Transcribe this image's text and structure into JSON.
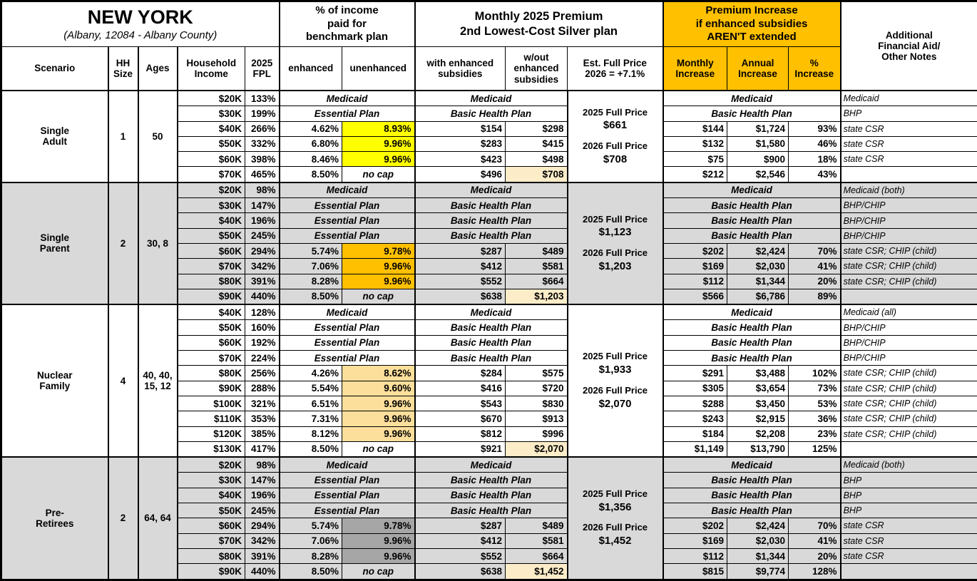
{
  "header": {
    "title": "NEW YORK",
    "subtitle": "(Albany, 12084 - Albany County)",
    "pct_income_group": "% of income\npaid for\nbenchmark plan",
    "premium_group": "Monthly 2025 Premium\n2nd Lowest-Cost Silver plan",
    "increase_group": "Premium Increase\nif enhanced subsidies\nAREN'T extended",
    "notes": "Additional\nFinancial Aid/\nOther Notes",
    "cols": {
      "scenario": "Scenario",
      "hh_size": "HH\nSize",
      "ages": "Ages",
      "income": "Household\nIncome",
      "fpl": "2025\nFPL",
      "enhanced": "enhanced",
      "unenhanced": "unenhanced",
      "with_subsidies": "with enhanced\nsubsidies",
      "without_subsidies": "w/out\nenhanced\nsubsidies",
      "full_price": "Est. Full Price\n2026 = +7.1%",
      "monthly_increase": "Monthly\nIncrease",
      "annual_increase": "Annual\nIncrease",
      "pct_increase": "%\nIncrease"
    }
  },
  "colors": {
    "header_accent": "#FFC000",
    "scenario_band_gray": "#D9D9D9",
    "highlight_yellow": "#FFFF00",
    "highlight_orange": "#FFC000",
    "highlight_tan": "#FBDF9B",
    "highlight_gray": "#A6A6A6",
    "full_price_highlight": "#FCECC8"
  },
  "scenarios": [
    {
      "name": "Single\nAdult",
      "hh_size": "1",
      "ages": "50",
      "band": "white",
      "highlight_color": "#FFFF00",
      "full_price": {
        "label_2025": "2025 Full Price",
        "price_2025": "$661",
        "label_2026": "2026 Full Price",
        "price_2026": "$708"
      },
      "rows": [
        {
          "income": "$20K",
          "fpl": "133%",
          "plan": true,
          "pct_plan": "Medicaid",
          "premium_plan": "Medicaid",
          "increase_plan": "Medicaid",
          "note": "Medicaid"
        },
        {
          "income": "$30K",
          "fpl": "199%",
          "plan": true,
          "pct_plan": "Essential Plan",
          "premium_plan": "Basic Health Plan",
          "increase_plan": "Basic Health Plan",
          "note": "BHP"
        },
        {
          "income": "$40K",
          "fpl": "266%",
          "enhanced": "4.62%",
          "unenhanced": "8.93%",
          "with_sub": "$154",
          "without_sub": "$298",
          "monthly": "$144",
          "annual": "$1,724",
          "pct_inc": "93%",
          "note": "state CSR"
        },
        {
          "income": "$50K",
          "fpl": "332%",
          "enhanced": "6.80%",
          "unenhanced": "9.96%",
          "with_sub": "$283",
          "without_sub": "$415",
          "monthly": "$132",
          "annual": "$1,580",
          "pct_inc": "46%",
          "note": "state CSR"
        },
        {
          "income": "$60K",
          "fpl": "398%",
          "enhanced": "8.46%",
          "unenhanced": "9.96%",
          "with_sub": "$423",
          "without_sub": "$498",
          "monthly": "$75",
          "annual": "$900",
          "pct_inc": "18%",
          "note": "state CSR"
        },
        {
          "income": "$70K",
          "fpl": "465%",
          "enhanced": "8.50%",
          "unenhanced": "no cap",
          "no_cap": true,
          "with_sub": "$496",
          "without_sub": "$708",
          "without_highlight": true,
          "monthly": "$212",
          "annual": "$2,546",
          "pct_inc": "43%",
          "note": ""
        }
      ]
    },
    {
      "name": "Single\nParent",
      "hh_size": "2",
      "ages": "30, 8",
      "band": "gray",
      "highlight_color": "#FFC000",
      "full_price": {
        "label_2025": "2025 Full Price",
        "price_2025": "$1,123",
        "label_2026": "2026 Full Price",
        "price_2026": "$1,203"
      },
      "rows": [
        {
          "income": "$20K",
          "fpl": "98%",
          "plan": true,
          "pct_plan": "Medicaid",
          "premium_plan": "Medicaid",
          "increase_plan": "Medicaid",
          "note": "Medicaid (both)"
        },
        {
          "income": "$30K",
          "fpl": "147%",
          "plan": true,
          "pct_plan": "Essential Plan",
          "premium_plan": "Basic Health Plan",
          "increase_plan": "Basic Health Plan",
          "note": "BHP/CHIP"
        },
        {
          "income": "$40K",
          "fpl": "196%",
          "plan": true,
          "pct_plan": "Essential Plan",
          "premium_plan": "Basic Health Plan",
          "increase_plan": "Basic Health Plan",
          "note": "BHP/CHIP"
        },
        {
          "income": "$50K",
          "fpl": "245%",
          "plan": true,
          "pct_plan": "Essential Plan",
          "premium_plan": "Basic Health Plan",
          "increase_plan": "Basic Health Plan",
          "note": "BHP/CHIP"
        },
        {
          "income": "$60K",
          "fpl": "294%",
          "enhanced": "5.74%",
          "unenhanced": "9.78%",
          "with_sub": "$287",
          "without_sub": "$489",
          "monthly": "$202",
          "annual": "$2,424",
          "pct_inc": "70%",
          "note": "state CSR; CHIP (child)"
        },
        {
          "income": "$70K",
          "fpl": "342%",
          "enhanced": "7.06%",
          "unenhanced": "9.96%",
          "with_sub": "$412",
          "without_sub": "$581",
          "monthly": "$169",
          "annual": "$2,030",
          "pct_inc": "41%",
          "note": "state CSR; CHIP (child)"
        },
        {
          "income": "$80K",
          "fpl": "391%",
          "enhanced": "8.28%",
          "unenhanced": "9.96%",
          "with_sub": "$552",
          "without_sub": "$664",
          "monthly": "$112",
          "annual": "$1,344",
          "pct_inc": "20%",
          "note": "state CSR; CHIP (child)"
        },
        {
          "income": "$90K",
          "fpl": "440%",
          "enhanced": "8.50%",
          "unenhanced": "no cap",
          "no_cap": true,
          "with_sub": "$638",
          "without_sub": "$1,203",
          "without_highlight": true,
          "monthly": "$566",
          "annual": "$6,786",
          "pct_inc": "89%",
          "note": ""
        }
      ]
    },
    {
      "name": "Nuclear\nFamily",
      "hh_size": "4",
      "ages": "40, 40,\n15, 12",
      "band": "white",
      "highlight_color": "#FBDF9B",
      "full_price": {
        "label_2025": "2025 Full Price",
        "price_2025": "$1,933",
        "label_2026": "2026 Full Price",
        "price_2026": "$2,070"
      },
      "rows": [
        {
          "income": "$40K",
          "fpl": "128%",
          "plan": true,
          "pct_plan": "Medicaid",
          "premium_plan": "Medicaid",
          "increase_plan": "Medicaid",
          "note": "Medicaid (all)"
        },
        {
          "income": "$50K",
          "fpl": "160%",
          "plan": true,
          "pct_plan": "Essential Plan",
          "premium_plan": "Basic Health Plan",
          "increase_plan": "Basic Health Plan",
          "note": "BHP/CHIP"
        },
        {
          "income": "$60K",
          "fpl": "192%",
          "plan": true,
          "pct_plan": "Essential Plan",
          "premium_plan": "Basic Health Plan",
          "increase_plan": "Basic Health Plan",
          "note": "BHP/CHIP"
        },
        {
          "income": "$70K",
          "fpl": "224%",
          "plan": true,
          "pct_plan": "Essential Plan",
          "premium_plan": "Basic Health Plan",
          "increase_plan": "Basic Health Plan",
          "note": "BHP/CHIP"
        },
        {
          "income": "$80K",
          "fpl": "256%",
          "enhanced": "4.26%",
          "unenhanced": "8.62%",
          "with_sub": "$284",
          "without_sub": "$575",
          "monthly": "$291",
          "annual": "$3,488",
          "pct_inc": "102%",
          "note": "state CSR; CHIP (child)"
        },
        {
          "income": "$90K",
          "fpl": "288%",
          "enhanced": "5.54%",
          "unenhanced": "9.60%",
          "with_sub": "$416",
          "without_sub": "$720",
          "monthly": "$305",
          "annual": "$3,654",
          "pct_inc": "73%",
          "note": "state CSR; CHIP (child)"
        },
        {
          "income": "$100K",
          "fpl": "321%",
          "enhanced": "6.51%",
          "unenhanced": "9.96%",
          "with_sub": "$543",
          "without_sub": "$830",
          "monthly": "$288",
          "annual": "$3,450",
          "pct_inc": "53%",
          "note": "state CSR; CHIP (child)"
        },
        {
          "income": "$110K",
          "fpl": "353%",
          "enhanced": "7.31%",
          "unenhanced": "9.96%",
          "with_sub": "$670",
          "without_sub": "$913",
          "monthly": "$243",
          "annual": "$2,915",
          "pct_inc": "36%",
          "note": "state CSR; CHIP (child)"
        },
        {
          "income": "$120K",
          "fpl": "385%",
          "enhanced": "8.12%",
          "unenhanced": "9.96%",
          "with_sub": "$812",
          "without_sub": "$996",
          "monthly": "$184",
          "annual": "$2,208",
          "pct_inc": "23%",
          "note": "state CSR; CHIP (child)"
        },
        {
          "income": "$130K",
          "fpl": "417%",
          "enhanced": "8.50%",
          "unenhanced": "no cap",
          "no_cap": true,
          "with_sub": "$921",
          "without_sub": "$2,070",
          "without_highlight": true,
          "monthly": "$1,149",
          "annual": "$13,790",
          "pct_inc": "125%",
          "note": ""
        }
      ]
    },
    {
      "name": "Pre-\nRetirees",
      "hh_size": "2",
      "ages": "64, 64",
      "band": "gray",
      "highlight_color": "#A6A6A6",
      "full_price": {
        "label_2025": "2025 Full Price",
        "price_2025": "$1,356",
        "label_2026": "2026 Full Price",
        "price_2026": "$1,452"
      },
      "rows": [
        {
          "income": "$20K",
          "fpl": "98%",
          "plan": true,
          "pct_plan": "Medicaid",
          "premium_plan": "Medicaid",
          "increase_plan": "Medicaid",
          "note": "Medicaid (both)"
        },
        {
          "income": "$30K",
          "fpl": "147%",
          "plan": true,
          "pct_plan": "Essential Plan",
          "premium_plan": "Basic Health Plan",
          "increase_plan": "Basic Health Plan",
          "note": "BHP"
        },
        {
          "income": "$40K",
          "fpl": "196%",
          "plan": true,
          "pct_plan": "Essential Plan",
          "premium_plan": "Basic Health Plan",
          "increase_plan": "Basic Health Plan",
          "note": "BHP"
        },
        {
          "income": "$50K",
          "fpl": "245%",
          "plan": true,
          "pct_plan": "Essential Plan",
          "premium_plan": "Basic Health Plan",
          "increase_plan": "Basic Health Plan",
          "note": "BHP"
        },
        {
          "income": "$60K",
          "fpl": "294%",
          "enhanced": "5.74%",
          "unenhanced": "9.78%",
          "with_sub": "$287",
          "without_sub": "$489",
          "monthly": "$202",
          "annual": "$2,424",
          "pct_inc": "70%",
          "note": "state CSR"
        },
        {
          "income": "$70K",
          "fpl": "342%",
          "enhanced": "7.06%",
          "unenhanced": "9.96%",
          "with_sub": "$412",
          "without_sub": "$581",
          "monthly": "$169",
          "annual": "$2,030",
          "pct_inc": "41%",
          "note": "state CSR"
        },
        {
          "income": "$80K",
          "fpl": "391%",
          "enhanced": "8.28%",
          "unenhanced": "9.96%",
          "with_sub": "$552",
          "without_sub": "$664",
          "monthly": "$112",
          "annual": "$1,344",
          "pct_inc": "20%",
          "note": "state CSR"
        },
        {
          "income": "$90K",
          "fpl": "440%",
          "enhanced": "8.50%",
          "unenhanced": "no cap",
          "no_cap": true,
          "with_sub": "$638",
          "without_sub": "$1,452",
          "without_highlight": true,
          "monthly": "$815",
          "annual": "$9,774",
          "pct_inc": "128%",
          "note": ""
        }
      ]
    }
  ]
}
